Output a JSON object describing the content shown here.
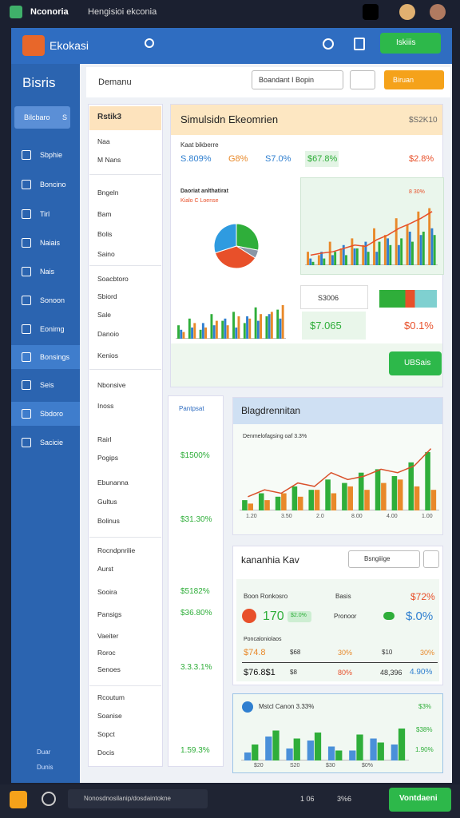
{
  "topbar": {
    "app": "Nconoria",
    "title": "Hengisioi ekconia"
  },
  "header": {
    "brand": "Ekokasi",
    "button": "Iskiiis"
  },
  "sidebar": {
    "title": "Bisris",
    "active": "Bilcbaro",
    "badge": "S",
    "items": [
      "Sbphie",
      "Boncino",
      "Tirl",
      "Naiais",
      "Nais",
      "Sonoon",
      "Eonimg",
      "Bonsings",
      "Seis",
      "Sbdoro",
      "Sacicie"
    ],
    "footer": [
      "Duar",
      "Dunis"
    ]
  },
  "toolbar": {
    "label": "Demanu",
    "select": "Boandant I Bopin",
    "button": "Biruan"
  },
  "list_panel": {
    "header": "Rstik3",
    "items": [
      "Naa",
      "M Nans",
      "Bngeln",
      "Bam",
      "Bolis",
      "Saino",
      "Soacbtoro",
      "Sbiord",
      "Sale",
      "Danoio",
      "Kenios",
      "Nbonsive",
      "Inoss",
      "Rairl",
      "Pogips",
      "Ebunanna",
      "Gultus",
      "Bolinus",
      "Rocndpnrilie",
      "Aurst",
      "Sooira",
      "Pansigs",
      "Vaeiter",
      "Roroc",
      "Senoes",
      "Rcoutum",
      "Soanise",
      "Sopct",
      "Docis"
    ]
  },
  "simulation": {
    "title": "Simulsidn Ekeomrien",
    "value": "$S2K10",
    "subtitle": "Kaat bikberre",
    "stats": [
      "S.809%",
      "G8%",
      "S7.0%",
      "$67.8%",
      "$2.8%"
    ],
    "pie_title": "Daoriat anlthatirat",
    "pie_legend": "Kialo C Loense",
    "trend_label": "8 30%",
    "summary_label": "S3006",
    "summary_value1": "$7.065",
    "summary_value2": "$0.1%",
    "button": "UBSais"
  },
  "narrow_panel": {
    "title": "Pantpsat",
    "values": [
      "$1500%",
      "$31.30%",
      "$5182%",
      "$36.80%",
      "3.3.3.1%",
      "1.59.3%"
    ]
  },
  "trend_panel": {
    "title": "Blagdrennitan",
    "label": "Denmelofagsing oaf 3.3%",
    "xlabels": [
      "1.20",
      "3.50",
      "2.0",
      "8.00",
      "4.00",
      "1.00"
    ]
  },
  "kpi_panel": {
    "title": "kananhia Kav",
    "select": "Bsngiiige",
    "rows": [
      [
        "Boon Ronkosro",
        "Basis",
        "$72%"
      ],
      [
        "170",
        "$2.0%",
        "Pronoor",
        "$.0%"
      ],
      [
        "Poncaloniolaos"
      ],
      [
        "$74.8",
        "$68",
        "30%",
        "$10",
        "30%"
      ],
      [
        "$76.8$1",
        "$8",
        "80%",
        "48,396",
        "4.90%"
      ]
    ]
  },
  "bottom_panel": {
    "title": "Mstcl Canon 3.33%",
    "values": [
      "$3%",
      "$38%",
      "1.90%"
    ],
    "xlabels": [
      "$20",
      "S20",
      "$30",
      "$0%"
    ]
  },
  "bottombar": {
    "input": "Nonosdnosilanip/dosdaintokne",
    "stat1": "1 06",
    "stat2": "3%6",
    "button": "Vontdaeni"
  },
  "charts": {
    "pie": {
      "type": "pie",
      "values": [
        28,
        6,
        36,
        30
      ],
      "colors": [
        "#2fae3a",
        "#8a96a6",
        "#e8502a",
        "#2f9be0"
      ]
    },
    "sim_bars": {
      "type": "bar",
      "ylim": [
        0,
        100
      ],
      "series": [
        {
          "color": "#2fae3a",
          "values": [
            30,
            45,
            20,
            55,
            40,
            60,
            35,
            70,
            50,
            65
          ]
        },
        {
          "color": "#2f7fd0",
          "values": [
            20,
            25,
            35,
            30,
            45,
            25,
            50,
            40,
            55,
            45
          ]
        },
        {
          "color": "#e8892a",
          "values": [
            15,
            35,
            25,
            40,
            30,
            50,
            45,
            55,
            60,
            75
          ]
        }
      ]
    },
    "sim_trend": {
      "type": "bar",
      "ylim": [
        0,
        100
      ],
      "series": [
        {
          "color": "#e8892a",
          "values": [
            20,
            15,
            35,
            25,
            40,
            30,
            55,
            45,
            70,
            60,
            80,
            85
          ]
        },
        {
          "color": "#2f7fd0",
          "values": [
            10,
            20,
            15,
            30,
            25,
            35,
            20,
            40,
            30,
            50,
            45,
            55
          ]
        },
        {
          "color": "#2fae3a",
          "values": [
            5,
            10,
            20,
            15,
            25,
            20,
            35,
            30,
            40,
            35,
            50,
            45
          ]
        }
      ],
      "line": {
        "color": "#e8502a",
        "values": [
          15,
          18,
          20,
          25,
          30,
          28,
          38,
          45,
          55,
          62,
          70,
          80
        ]
      }
    },
    "trend": {
      "type": "bar",
      "ylim": [
        0,
        100
      ],
      "series": [
        {
          "color": "#2fae3a",
          "values": [
            15,
            25,
            20,
            35,
            30,
            45,
            40,
            55,
            60,
            50,
            70,
            85
          ]
        },
        {
          "color": "#e8892a",
          "values": [
            10,
            15,
            25,
            20,
            30,
            25,
            35,
            30,
            40,
            45,
            35,
            30
          ]
        }
      ],
      "line": {
        "color": "#d9502a",
        "values": [
          20,
          30,
          25,
          40,
          35,
          55,
          45,
          50,
          60,
          55,
          65,
          90
        ]
      }
    },
    "bottom": {
      "type": "bar",
      "ylim": [
        0,
        100
      ],
      "series": [
        {
          "color": "#4a90d9",
          "values": [
            20,
            60,
            30,
            50,
            35,
            25,
            55,
            40
          ]
        },
        {
          "color": "#2fae3a",
          "values": [
            40,
            75,
            55,
            70,
            25,
            65,
            45,
            80
          ]
        }
      ]
    }
  }
}
